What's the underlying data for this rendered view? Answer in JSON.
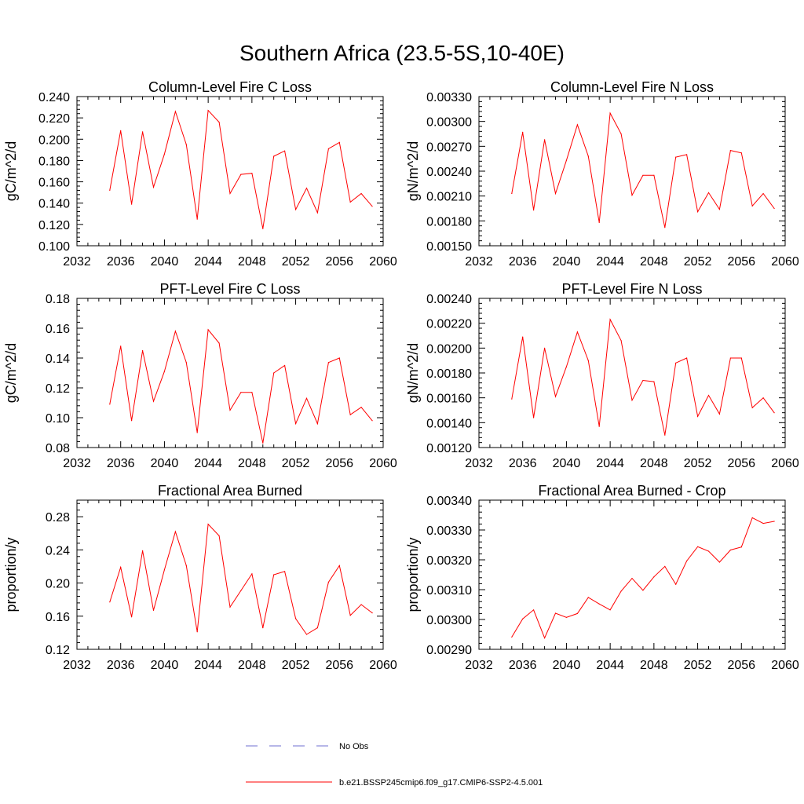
{
  "figure": {
    "title": "Southern Africa (23.5-5S,10-40E)"
  },
  "legend": {
    "entries": [
      {
        "label": "No Obs",
        "color": "#6f6fd0",
        "style": "dashed"
      },
      {
        "label": "b.e21.BSSP245cmip6.f09_g17.CMIP6-SSP2-4.5.001",
        "color": "#ff0000",
        "style": "solid"
      }
    ]
  },
  "chart_data": [
    {
      "type": "line",
      "title": "Column-Level Fire C Loss",
      "ylabel": "gC/m^2/d",
      "xlim": [
        2032,
        2060
      ],
      "ylim": [
        0.1,
        0.24
      ],
      "xticks": [
        "2032",
        "2036",
        "2040",
        "2044",
        "2048",
        "2052",
        "2056",
        "2060"
      ],
      "yticks": [
        "0.100",
        "0.120",
        "0.140",
        "0.160",
        "0.180",
        "0.200",
        "0.220",
        "0.240"
      ],
      "series": [
        {
          "color": "#ff0000",
          "x": [
            2035,
            2036,
            2037,
            2038,
            2039,
            2040,
            2041,
            2042,
            2043,
            2044,
            2045,
            2046,
            2047,
            2048,
            2049,
            2050,
            2051,
            2052,
            2053,
            2054,
            2055,
            2056,
            2057,
            2058,
            2059
          ],
          "y": [
            0.152,
            0.208,
            0.139,
            0.207,
            0.155,
            0.186,
            0.226,
            0.195,
            0.125,
            0.227,
            0.216,
            0.149,
            0.167,
            0.168,
            0.116,
            0.184,
            0.189,
            0.134,
            0.154,
            0.131,
            0.191,
            0.197,
            0.141,
            0.149,
            0.137
          ]
        }
      ]
    },
    {
      "type": "line",
      "title": "Column-Level Fire N Loss",
      "ylabel": "gN/m^2/d",
      "xlim": [
        2032,
        2060
      ],
      "ylim": [
        0.0015,
        0.0033
      ],
      "xticks": [
        "2032",
        "2036",
        "2040",
        "2044",
        "2048",
        "2052",
        "2056",
        "2060"
      ],
      "yticks": [
        "0.00150",
        "0.00180",
        "0.00210",
        "0.00240",
        "0.00270",
        "0.00300",
        "0.00330"
      ],
      "series": [
        {
          "color": "#ff0000",
          "x": [
            2035,
            2036,
            2037,
            2038,
            2039,
            2040,
            2041,
            2042,
            2043,
            2044,
            2045,
            2046,
            2047,
            2048,
            2049,
            2050,
            2051,
            2052,
            2053,
            2054,
            2055,
            2056,
            2057,
            2058,
            2059
          ],
          "y": [
            0.00213,
            0.00287,
            0.00193,
            0.00278,
            0.00213,
            0.00253,
            0.00296,
            0.00258,
            0.00178,
            0.0031,
            0.00285,
            0.00211,
            0.00235,
            0.00235,
            0.00172,
            0.00257,
            0.0026,
            0.00191,
            0.00214,
            0.00194,
            0.00265,
            0.00262,
            0.00198,
            0.00213,
            0.00195
          ]
        }
      ]
    },
    {
      "type": "line",
      "title": "PFT-Level Fire C Loss",
      "ylabel": "gC/m^2/d",
      "xlim": [
        2032,
        2060
      ],
      "ylim": [
        0.08,
        0.18
      ],
      "xticks": [
        "2032",
        "2036",
        "2040",
        "2044",
        "2048",
        "2052",
        "2056",
        "2060"
      ],
      "yticks": [
        "0.08",
        "0.10",
        "0.12",
        "0.14",
        "0.16",
        "0.18"
      ],
      "series": [
        {
          "color": "#ff0000",
          "x": [
            2035,
            2036,
            2037,
            2038,
            2039,
            2040,
            2041,
            2042,
            2043,
            2044,
            2045,
            2046,
            2047,
            2048,
            2049,
            2050,
            2051,
            2052,
            2053,
            2054,
            2055,
            2056,
            2057,
            2058,
            2059
          ],
          "y": [
            0.109,
            0.148,
            0.098,
            0.145,
            0.111,
            0.131,
            0.158,
            0.137,
            0.09,
            0.159,
            0.15,
            0.105,
            0.117,
            0.117,
            0.083,
            0.13,
            0.135,
            0.096,
            0.113,
            0.096,
            0.137,
            0.14,
            0.102,
            0.107,
            0.098
          ]
        }
      ]
    },
    {
      "type": "line",
      "title": "PFT-Level Fire N Loss",
      "ylabel": "gN/m^2/d",
      "xlim": [
        2032,
        2060
      ],
      "ylim": [
        0.0012,
        0.0024
      ],
      "xticks": [
        "2032",
        "2036",
        "2040",
        "2044",
        "2048",
        "2052",
        "2056",
        "2060"
      ],
      "yticks": [
        "0.00120",
        "0.00140",
        "0.00160",
        "0.00180",
        "0.00200",
        "0.00220",
        "0.00240"
      ],
      "series": [
        {
          "color": "#ff0000",
          "x": [
            2035,
            2036,
            2037,
            2038,
            2039,
            2040,
            2041,
            2042,
            2043,
            2044,
            2045,
            2046,
            2047,
            2048,
            2049,
            2050,
            2051,
            2052,
            2053,
            2054,
            2055,
            2056,
            2057,
            2058,
            2059
          ],
          "y": [
            0.00159,
            0.00209,
            0.00144,
            0.002,
            0.00161,
            0.00185,
            0.00213,
            0.0019,
            0.00137,
            0.00223,
            0.00206,
            0.00158,
            0.00174,
            0.00173,
            0.0013,
            0.00188,
            0.00192,
            0.00145,
            0.00162,
            0.00147,
            0.00192,
            0.00192,
            0.00152,
            0.0016,
            0.00148
          ]
        }
      ]
    },
    {
      "type": "line",
      "title": "Fractional Area Burned",
      "ylabel": "proportion/y",
      "xlim": [
        2032,
        2060
      ],
      "ylim": [
        0.12,
        0.3
      ],
      "xticks": [
        "2032",
        "2036",
        "2040",
        "2044",
        "2048",
        "2052",
        "2056",
        "2060"
      ],
      "yticks": [
        "0.12",
        "0.16",
        "0.20",
        "0.24",
        "0.28"
      ],
      "series": [
        {
          "color": "#ff0000",
          "x": [
            2035,
            2036,
            2037,
            2038,
            2039,
            2040,
            2041,
            2042,
            2043,
            2044,
            2045,
            2046,
            2047,
            2048,
            2049,
            2050,
            2051,
            2052,
            2053,
            2054,
            2055,
            2056,
            2057,
            2058,
            2059
          ],
          "y": [
            0.177,
            0.219,
            0.159,
            0.239,
            0.167,
            0.216,
            0.262,
            0.221,
            0.141,
            0.271,
            0.257,
            0.171,
            0.191,
            0.211,
            0.146,
            0.21,
            0.214,
            0.157,
            0.138,
            0.146,
            0.201,
            0.221,
            0.161,
            0.174,
            0.164
          ]
        }
      ]
    },
    {
      "type": "line",
      "title": "Fractional Area Burned - Crop",
      "ylabel": "proportion/y",
      "xlim": [
        2032,
        2060
      ],
      "ylim": [
        0.0029,
        0.0034
      ],
      "xticks": [
        "2032",
        "2036",
        "2040",
        "2044",
        "2048",
        "2052",
        "2056",
        "2060"
      ],
      "yticks": [
        "0.00290",
        "0.00300",
        "0.00310",
        "0.00320",
        "0.00330",
        "0.00340"
      ],
      "series": [
        {
          "color": "#ff0000",
          "x": [
            2035,
            2036,
            2037,
            2038,
            2039,
            2040,
            2041,
            2042,
            2043,
            2044,
            2045,
            2046,
            2047,
            2048,
            2049,
            2050,
            2051,
            2052,
            2053,
            2054,
            2055,
            2056,
            2057,
            2058,
            2059
          ],
          "y": [
            0.002941,
            0.003002,
            0.003032,
            0.002938,
            0.003021,
            0.003007,
            0.00302,
            0.003074,
            0.003052,
            0.003032,
            0.003095,
            0.003138,
            0.003098,
            0.003143,
            0.003178,
            0.003118,
            0.003196,
            0.003244,
            0.003229,
            0.003192,
            0.003233,
            0.003243,
            0.003341,
            0.003322,
            0.003329
          ]
        }
      ]
    }
  ]
}
